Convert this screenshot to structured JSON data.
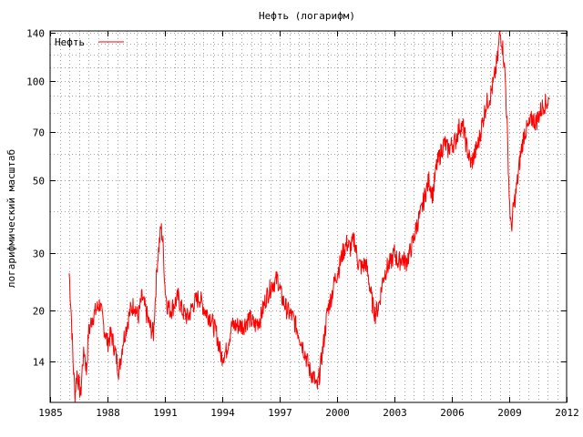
{
  "chart_data": {
    "type": "line",
    "title": "Нефть  (логарифм)",
    "xlabel": "",
    "ylabel": "логарифмический масштаб",
    "y_scale": "log",
    "xlim": [
      1985,
      2012
    ],
    "ylim": [
      10.5,
      142
    ],
    "x_ticks": [
      1985,
      1988,
      1991,
      1994,
      1997,
      2000,
      2003,
      2006,
      2009,
      2012
    ],
    "x_tick_labels": [
      "1985",
      "1988",
      "1991",
      "1994",
      "1997",
      "2000",
      "2003",
      "2006",
      "2009",
      "2012"
    ],
    "y_ticks": [
      14,
      20,
      30,
      50,
      70,
      100,
      140
    ],
    "y_tick_labels": [
      "14",
      "20",
      "30",
      "50",
      "70",
      "100",
      "140"
    ],
    "grid": true,
    "legend": {
      "position": "top-left",
      "entries": [
        {
          "name": "Нефть",
          "color": "#ff0000"
        }
      ]
    },
    "series": [
      {
        "name": "Нефть",
        "color": "#ff0000",
        "x": [
          1986.0,
          1986.1,
          1986.2,
          1986.3,
          1986.4,
          1986.5,
          1986.6,
          1986.7,
          1986.8,
          1986.9,
          1987.0,
          1987.2,
          1987.4,
          1987.6,
          1987.8,
          1988.0,
          1988.2,
          1988.4,
          1988.6,
          1988.8,
          1989.0,
          1989.2,
          1989.4,
          1989.6,
          1989.8,
          1990.0,
          1990.2,
          1990.4,
          1990.6,
          1990.8,
          1990.9,
          1991.0,
          1991.1,
          1991.3,
          1991.5,
          1991.7,
          1991.9,
          1992.2,
          1992.5,
          1992.8,
          1993.1,
          1993.4,
          1993.7,
          1993.95,
          1994.2,
          1994.5,
          1994.8,
          1995.1,
          1995.4,
          1995.7,
          1996.0,
          1996.3,
          1996.6,
          1996.9,
          1997.1,
          1997.4,
          1997.7,
          1998.0,
          1998.3,
          1998.6,
          1998.8,
          1998.95,
          1999.1,
          1999.3,
          1999.5,
          1999.7,
          1999.9,
          2000.1,
          2000.3,
          2000.5,
          2000.7,
          2000.9,
          2001.1,
          2001.3,
          2001.5,
          2001.7,
          2001.85,
          2002.0,
          2002.2,
          2002.4,
          2002.6,
          2002.8,
          2003.0,
          2003.2,
          2003.4,
          2003.6,
          2003.8,
          2004.0,
          2004.2,
          2004.4,
          2004.6,
          2004.8,
          2005.0,
          2005.2,
          2005.4,
          2005.6,
          2005.8,
          2006.0,
          2006.2,
          2006.4,
          2006.6,
          2006.8,
          2007.0,
          2007.2,
          2007.4,
          2007.6,
          2007.8,
          2008.0,
          2008.2,
          2008.4,
          2008.5,
          2008.6,
          2008.7,
          2008.8,
          2008.9,
          2009.0,
          2009.1,
          2009.2,
          2009.4,
          2009.6,
          2009.8,
          2010.0,
          2010.2,
          2010.4,
          2010.6,
          2010.8,
          2011.0,
          2011.1
        ],
        "y": [
          26,
          20,
          14,
          11,
          13,
          12,
          11,
          14,
          15,
          13,
          17,
          19,
          20,
          21,
          18,
          16,
          17,
          15,
          13,
          16,
          18,
          20,
          21,
          19,
          22,
          20,
          18,
          17,
          28,
          36,
          32,
          24,
          21,
          20,
          21,
          22,
          20,
          19,
          21,
          22,
          20,
          19,
          17,
          14.5,
          15,
          18,
          18,
          18,
          19,
          18,
          19,
          22,
          24,
          25,
          22,
          20,
          19,
          17,
          15,
          13,
          12.5,
          11.5,
          13,
          16,
          20,
          22,
          25,
          27,
          30,
          32,
          31,
          33,
          28,
          27,
          28,
          24,
          21,
          19.5,
          21,
          25,
          27,
          28,
          30,
          28,
          29,
          28,
          30,
          33,
          37,
          40,
          45,
          50,
          45,
          55,
          60,
          65,
          62,
          64,
          66,
          73,
          72,
          62,
          56,
          60,
          65,
          75,
          85,
          90,
          100,
          118,
          140,
          135,
          120,
          100,
          70,
          45,
          35,
          40,
          48,
          60,
          70,
          72,
          77,
          75,
          80,
          85,
          86,
          88
        ]
      }
    ]
  }
}
